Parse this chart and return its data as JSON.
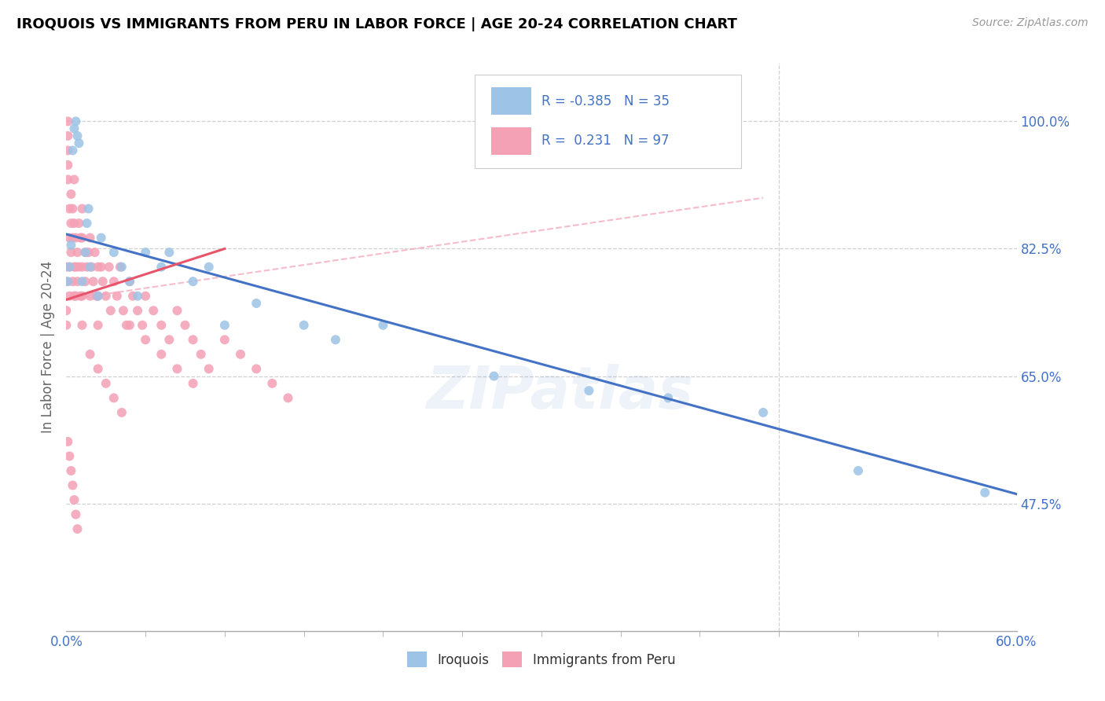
{
  "title": "IROQUOIS VS IMMIGRANTS FROM PERU IN LABOR FORCE | AGE 20-24 CORRELATION CHART",
  "source": "Source: ZipAtlas.com",
  "ylabel": "In Labor Force | Age 20-24",
  "xlim": [
    0.0,
    0.6
  ],
  "ylim": [
    0.3,
    1.08
  ],
  "yticks": [
    0.475,
    0.65,
    0.825,
    1.0
  ],
  "ytick_labels": [
    "47.5%",
    "65.0%",
    "82.5%",
    "100.0%"
  ],
  "xticks": [
    0.0,
    0.6
  ],
  "xtick_labels": [
    "0.0%",
    "60.0%"
  ],
  "r_iroquois": -0.385,
  "n_iroquois": 35,
  "r_peru": 0.231,
  "n_peru": 97,
  "color_iroquois": "#9dc3e6",
  "color_peru": "#f4a0b5",
  "trendline_iroquois_color": "#4472c4",
  "trendline_peru_color": "#e8546a",
  "dashed_line_color": "#f4a0b5",
  "watermark": "ZIPatlas",
  "iroquois_x": [
    0.001,
    0.002,
    0.003,
    0.004,
    0.005,
    0.006,
    0.007,
    0.008,
    0.01,
    0.012,
    0.013,
    0.014,
    0.015,
    0.02,
    0.022,
    0.03,
    0.035,
    0.04,
    0.045,
    0.05,
    0.06,
    0.065,
    0.08,
    0.09,
    0.1,
    0.12,
    0.15,
    0.17,
    0.2,
    0.27,
    0.33,
    0.38,
    0.44,
    0.5,
    0.58
  ],
  "iroquois_y": [
    0.78,
    0.8,
    0.83,
    0.96,
    0.99,
    1.0,
    0.98,
    0.97,
    0.78,
    0.82,
    0.86,
    0.88,
    0.8,
    0.76,
    0.84,
    0.82,
    0.8,
    0.78,
    0.76,
    0.82,
    0.8,
    0.82,
    0.78,
    0.8,
    0.72,
    0.75,
    0.72,
    0.7,
    0.72,
    0.65,
    0.63,
    0.62,
    0.6,
    0.52,
    0.49
  ],
  "peru_x": [
    0.0,
    0.0,
    0.0,
    0.0,
    0.001,
    0.001,
    0.001,
    0.001,
    0.001,
    0.002,
    0.002,
    0.002,
    0.002,
    0.003,
    0.003,
    0.003,
    0.004,
    0.004,
    0.004,
    0.005,
    0.005,
    0.005,
    0.005,
    0.006,
    0.006,
    0.006,
    0.007,
    0.007,
    0.008,
    0.008,
    0.009,
    0.009,
    0.01,
    0.01,
    0.01,
    0.01,
    0.01,
    0.012,
    0.012,
    0.013,
    0.014,
    0.015,
    0.015,
    0.016,
    0.017,
    0.018,
    0.019,
    0.02,
    0.02,
    0.02,
    0.022,
    0.023,
    0.025,
    0.027,
    0.028,
    0.03,
    0.032,
    0.034,
    0.036,
    0.038,
    0.04,
    0.042,
    0.045,
    0.048,
    0.05,
    0.055,
    0.06,
    0.065,
    0.07,
    0.075,
    0.08,
    0.085,
    0.09,
    0.1,
    0.11,
    0.12,
    0.13,
    0.14,
    0.015,
    0.02,
    0.025,
    0.03,
    0.035,
    0.04,
    0.05,
    0.06,
    0.07,
    0.08,
    0.001,
    0.002,
    0.003,
    0.004,
    0.005,
    0.006,
    0.007
  ],
  "peru_y": [
    0.78,
    0.8,
    0.72,
    0.74,
    0.92,
    0.96,
    1.0,
    0.98,
    0.94,
    0.88,
    0.84,
    0.8,
    0.76,
    0.9,
    0.86,
    0.82,
    0.88,
    0.84,
    0.78,
    0.92,
    0.86,
    0.8,
    0.76,
    0.84,
    0.8,
    0.76,
    0.82,
    0.78,
    0.86,
    0.8,
    0.84,
    0.76,
    0.88,
    0.84,
    0.8,
    0.76,
    0.72,
    0.82,
    0.78,
    0.8,
    0.82,
    0.84,
    0.76,
    0.8,
    0.78,
    0.82,
    0.76,
    0.8,
    0.76,
    0.72,
    0.8,
    0.78,
    0.76,
    0.8,
    0.74,
    0.78,
    0.76,
    0.8,
    0.74,
    0.72,
    0.78,
    0.76,
    0.74,
    0.72,
    0.76,
    0.74,
    0.72,
    0.7,
    0.74,
    0.72,
    0.7,
    0.68,
    0.66,
    0.7,
    0.68,
    0.66,
    0.64,
    0.62,
    0.68,
    0.66,
    0.64,
    0.62,
    0.6,
    0.72,
    0.7,
    0.68,
    0.66,
    0.64,
    0.56,
    0.54,
    0.52,
    0.5,
    0.48,
    0.46,
    0.44
  ]
}
